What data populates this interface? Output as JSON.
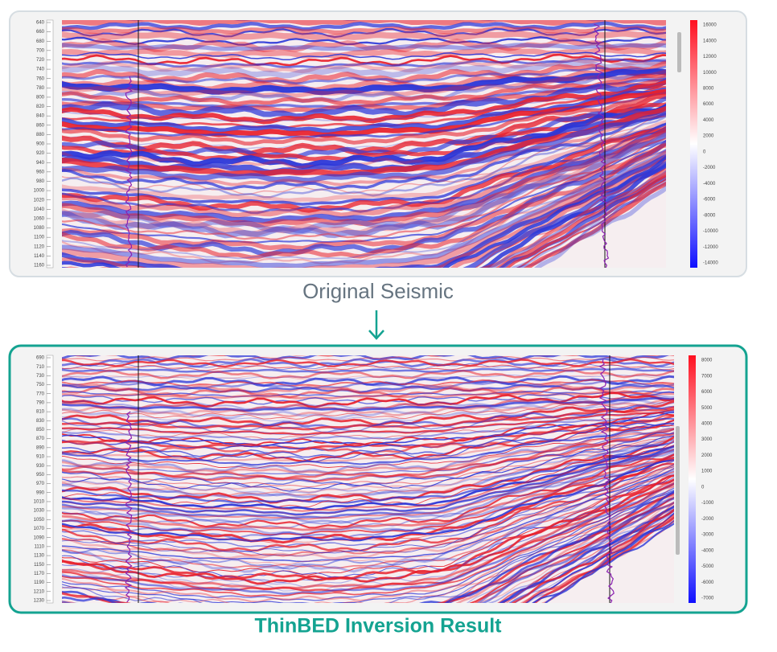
{
  "panels": [
    {
      "caption": "Original Seismic",
      "depth_labels": [
        640,
        660,
        680,
        700,
        720,
        740,
        760,
        780,
        800,
        820,
        840,
        860,
        880,
        900,
        920,
        940,
        960,
        980,
        1000,
        1020,
        1040,
        1060,
        1080,
        1100,
        1120,
        1140,
        1160
      ],
      "colorbar_labels": [
        16000,
        14000,
        12000,
        10000,
        8000,
        6000,
        4000,
        2000,
        0,
        -2000,
        -4000,
        -6000,
        -8000,
        -10000,
        -12000,
        -14000
      ]
    },
    {
      "caption": "ThinBED Inversion Result",
      "depth_labels": [
        690,
        710,
        730,
        750,
        770,
        790,
        810,
        830,
        850,
        870,
        890,
        910,
        930,
        950,
        970,
        990,
        1010,
        1030,
        1050,
        1070,
        1090,
        1110,
        1130,
        1150,
        1170,
        1190,
        1210,
        1230
      ],
      "colorbar_labels": [
        8000,
        7000,
        6000,
        5000,
        4000,
        3000,
        2000,
        1000,
        0,
        -1000,
        -2000,
        -3000,
        -4000,
        -5000,
        -6000,
        -7000
      ]
    }
  ]
}
